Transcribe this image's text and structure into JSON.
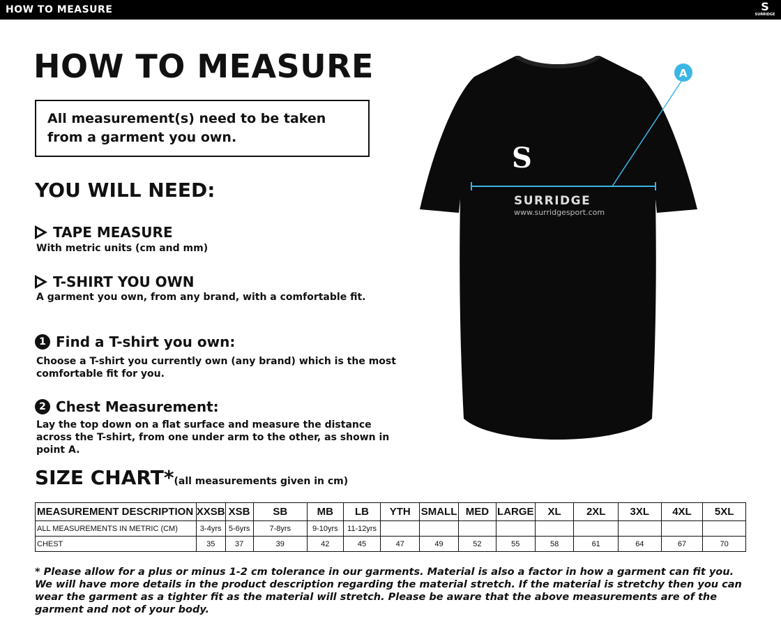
{
  "header": {
    "title": "HOW TO MEASURE",
    "logo_text": "SURRIDGE"
  },
  "main": {
    "title": "HOW TO MEASURE",
    "notice": "All measurement(s) need to be taken from a garment you own.",
    "need_title": "YOU WILL NEED:",
    "needs": [
      {
        "title": "TAPE MEASURE",
        "desc": "With metric units (cm and mm)"
      },
      {
        "title": "T-SHIRT YOU OWN",
        "desc": "A garment you own, from any brand, with a comfortable fit."
      }
    ],
    "steps": [
      {
        "num": "1",
        "title": "Find a T-shirt you own:",
        "desc": "Choose a T-shirt you currently own (any brand) which is the most comfortable fit for you."
      },
      {
        "num": "2",
        "title": "Chest Measurement:",
        "desc": "Lay the top down on a flat surface and measure the distance across the T-shirt, from one under arm to the other, as shown in point A."
      }
    ],
    "shirt": {
      "brand": "SURRIDGE",
      "url": "www.surridgesport.com",
      "point": "A",
      "accent": "#3bb6e6"
    }
  },
  "size_chart": {
    "title": "SIZE CHART*",
    "note": "(all measurements given in cm)",
    "headers": [
      "MEASUREMENT DESCRIPTION",
      "XXSB",
      "XSB",
      "SB",
      "MB",
      "LB",
      "YTH",
      "SMALL",
      "MED",
      "LARGE",
      "XL",
      "2XL",
      "3XL",
      "4XL",
      "5XL"
    ],
    "rows": [
      [
        "ALL MEASUREMENTS IN METRIC (CM)",
        "3-4yrs",
        "5-6yrs",
        "7-8yrs",
        "9-10yrs",
        "11-12yrs",
        "",
        "",
        "",
        "",
        "",
        "",
        "",
        "",
        ""
      ],
      [
        "CHEST",
        "35",
        "37",
        "39",
        "42",
        "45",
        "47",
        "49",
        "52",
        "55",
        "58",
        "61",
        "64",
        "67",
        "70"
      ]
    ],
    "footnote": "* Please allow for a plus or minus 1-2 cm tolerance in our garments. Material is also a factor in how a garment can fit you. We will have more details in the product description regarding the material stretch.  If the material is stretchy then you can wear the garment as a tighter fit as the material will stretch.  Please be aware that the above measurements are of the garment and not of your body."
  }
}
